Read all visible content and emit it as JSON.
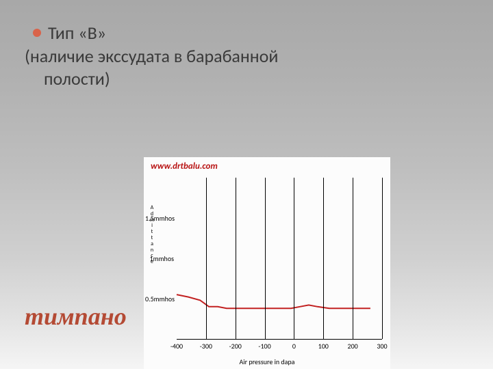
{
  "bullet": {
    "dot_color": "#d9634a",
    "text": "Тип «В»"
  },
  "subtitle": {
    "line1": "(наличие экссудата в барабанной",
    "line2": "полости)"
  },
  "bottom_title": {
    "text": "тимпано",
    "color": "#b44a34"
  },
  "chart": {
    "type": "line",
    "watermark": {
      "text": "www.drtbalu.com",
      "color": "#b81414"
    },
    "background_color": "#fcfcfc",
    "line_color": "#c22020",
    "line_width": 2,
    "grid_color": "#000000",
    "x": {
      "label": "Air pressure in dapa",
      "ticks": [
        -400,
        -300,
        -200,
        -100,
        0,
        100,
        200,
        300
      ],
      "min": -400,
      "max": 300
    },
    "y": {
      "label_chars": [
        "A",
        "d",
        "m",
        "i",
        "t",
        "t",
        "a",
        "n",
        "c",
        "e"
      ],
      "ticks": [
        {
          "v": 0.5,
          "label": "0.5mmhos"
        },
        {
          "v": 1.0,
          "label": "1mmhos"
        },
        {
          "v": 1.5,
          "label": "1.5mmhos"
        }
      ],
      "min": 0.0,
      "max": 2.0
    },
    "series": [
      {
        "x": -400,
        "y": 0.55
      },
      {
        "x": -360,
        "y": 0.52
      },
      {
        "x": -320,
        "y": 0.48
      },
      {
        "x": -290,
        "y": 0.4
      },
      {
        "x": -260,
        "y": 0.4
      },
      {
        "x": -230,
        "y": 0.38
      },
      {
        "x": -200,
        "y": 0.38
      },
      {
        "x": -150,
        "y": 0.38
      },
      {
        "x": -100,
        "y": 0.38
      },
      {
        "x": -50,
        "y": 0.38
      },
      {
        "x": -10,
        "y": 0.38
      },
      {
        "x": 20,
        "y": 0.4
      },
      {
        "x": 50,
        "y": 0.42
      },
      {
        "x": 80,
        "y": 0.4
      },
      {
        "x": 120,
        "y": 0.38
      },
      {
        "x": 180,
        "y": 0.38
      },
      {
        "x": 260,
        "y": 0.38
      }
    ]
  }
}
